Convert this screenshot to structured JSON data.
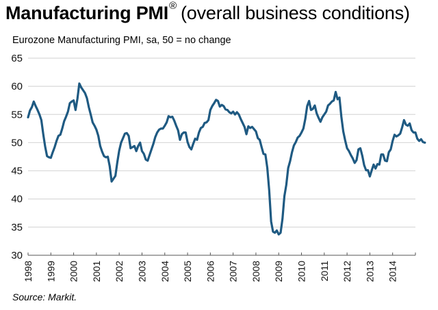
{
  "chart_data": {
    "type": "line",
    "title": "Manufacturing PMI",
    "title_superscript": "®",
    "title_suffix": "(overall business conditions)",
    "subtitle": "Eurozone Manufacturing PMI, sa, 50 = no change",
    "source": "Source: Markit.",
    "xlabel": "",
    "ylabel": "",
    "ylim": [
      30,
      65
    ],
    "yticks": [
      30,
      35,
      40,
      45,
      50,
      55,
      60,
      65
    ],
    "xlim": [
      1998,
      2015
    ],
    "xticks": [
      "1998",
      "1999",
      "2000",
      "2001",
      "2002",
      "2003",
      "2004",
      "2005",
      "2006",
      "2007",
      "2008",
      "2009",
      "2010",
      "2011",
      "2012",
      "2013",
      "2014"
    ],
    "grid": true,
    "legend": "none",
    "series": [
      {
        "name": "Eurozone Manufacturing PMI",
        "color": "#1f5a82",
        "start": "1998-01",
        "frequency": "monthly",
        "values": [
          54.5,
          55.7,
          56.3,
          57.3,
          56.5,
          55.8,
          55.0,
          54.0,
          51.5,
          49.3,
          47.6,
          47.4,
          47.3,
          48.3,
          49.2,
          50.3,
          51.2,
          51.4,
          52.5,
          53.8,
          54.6,
          55.5,
          57.0,
          57.3,
          57.5,
          55.8,
          57.8,
          60.5,
          59.8,
          59.3,
          58.8,
          57.9,
          56.3,
          55.0,
          53.6,
          53.0,
          52.3,
          51.2,
          49.4,
          48.4,
          47.6,
          47.4,
          47.5,
          45.8,
          43.1,
          43.6,
          44.1,
          46.5,
          48.6,
          50.0,
          50.8,
          51.6,
          51.7,
          51.2,
          49.0,
          49.2,
          49.4,
          48.5,
          49.4,
          50.0,
          48.5,
          48.0,
          47.0,
          46.8,
          47.8,
          48.8,
          49.8,
          51.0,
          51.8,
          52.3,
          52.5,
          52.5,
          53.0,
          53.6,
          54.7,
          54.5,
          54.6,
          53.9,
          53.0,
          52.2,
          50.5,
          51.5,
          51.8,
          51.8,
          50.1,
          49.2,
          48.8,
          49.8,
          50.7,
          50.5,
          51.8,
          52.6,
          52.8,
          53.5,
          53.6,
          54.0,
          55.8,
          56.5,
          57.0,
          57.6,
          57.4,
          56.4,
          56.7,
          56.5,
          55.9,
          55.8,
          55.4,
          55.2,
          55.5,
          55.0,
          55.4,
          55.0,
          54.2,
          53.5,
          52.8,
          51.5,
          52.9,
          52.6,
          52.8,
          52.4,
          52.0,
          50.8,
          50.5,
          49.2,
          48.0,
          47.9,
          45.5,
          41.5,
          36.0,
          34.2,
          34.0,
          34.4,
          33.7,
          34.0,
          36.5,
          40.5,
          42.5,
          45.5,
          46.7,
          48.3,
          49.5,
          50.1,
          50.9,
          51.2,
          51.8,
          52.5,
          54.2,
          56.5,
          57.4,
          55.8,
          56.0,
          56.6,
          55.2,
          54.4,
          53.7,
          54.5,
          55.0,
          55.5,
          56.6,
          56.9,
          57.3,
          57.5,
          59.0,
          57.7,
          58.0,
          54.6,
          52.0,
          50.4,
          49.0,
          48.5,
          47.8,
          47.2,
          46.4,
          46.9,
          48.8,
          49.0,
          47.7,
          46.0,
          45.1,
          45.1,
          44.0,
          45.1,
          46.1,
          45.4,
          46.2,
          46.1,
          47.9,
          47.9,
          46.8,
          46.7,
          48.3,
          48.8,
          50.3,
          51.4,
          51.1,
          51.3,
          51.6,
          52.7,
          54.0,
          53.2,
          53.0,
          53.4,
          52.2,
          51.8,
          51.8,
          50.7,
          50.3,
          50.6,
          50.1,
          50.0
        ]
      }
    ]
  }
}
